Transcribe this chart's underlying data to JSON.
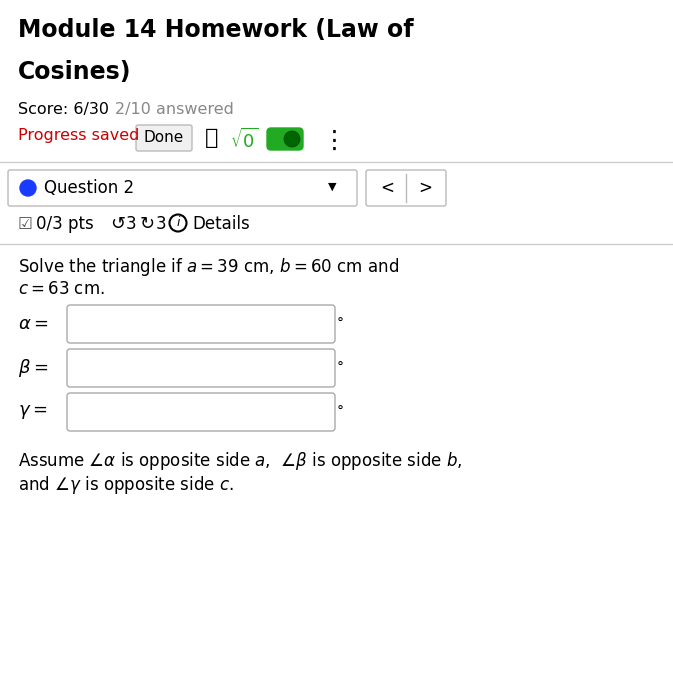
{
  "title_line1": "Module 14 Homework (Law of",
  "title_line2": "Cosines)",
  "score_text": "Score: 6/30",
  "answered_text": "2/10 answered",
  "progress_label": "Progress saved",
  "done_btn": "Done",
  "question_label": "Question 2",
  "pts_text": "0/3 pts",
  "redo_num": "3",
  "retry_num": "3",
  "details_text": "Details",
  "problem_line1": "Solve the triangle if $a = 39$ cm, $b = 60$ cm and",
  "problem_line2": "$c = 63$ cm.",
  "alpha_label": "$\\alpha =$",
  "beta_label": "$\\beta =$",
  "gamma_label": "$\\gamma =$",
  "degree_symbol": "°",
  "note_line1": "Assume $\\angle\\alpha$ is opposite side $a$,  $\\angle\\beta$ is opposite side $b$,",
  "note_line2": "and $\\angle\\gamma$ is opposite side $c$.",
  "bg_color": "#ffffff",
  "title_color": "#000000",
  "score_color": "#000000",
  "answered_color": "#888888",
  "progress_color": "#cc0000",
  "separator_color": "#cccccc",
  "question_dot_color": "#1a3aff",
  "input_box_color": "#ffffff",
  "input_border_color": "#aaaaaa",
  "toggle_green": "#22aa22",
  "sqrt_color": "#22aa22",
  "gray_bg": "#f0f0f0"
}
